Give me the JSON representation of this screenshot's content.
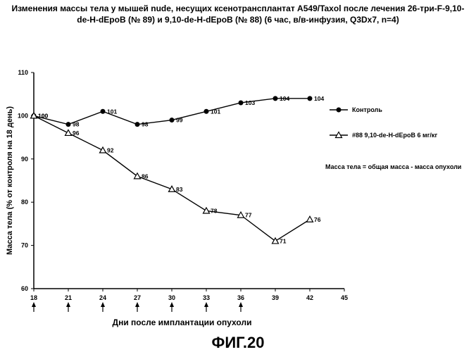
{
  "title_line1": "Изменения массы тела у мышей nude, несущих ксенотрансплантат A549/Taxol после лечения 26-три-F-9,10-",
  "title_line2": "de-H-dEpoB (№ 89) и 9,10-de-H-dEpoB (№ 88) (6 час, в/в-инфузия, Q3Dx7, n=4)",
  "figure_label": "ФИГ.20",
  "chart_data": {
    "type": "line",
    "xlabel": "Дни после имплантации опухоли",
    "ylabel": "Масса тела (% от контроля на 18 день)",
    "xlim": [
      18,
      45
    ],
    "ylim": [
      60,
      110
    ],
    "x_ticks": [
      18,
      21,
      24,
      27,
      30,
      33,
      36,
      39,
      42,
      45
    ],
    "y_ticks": [
      60,
      70,
      80,
      90,
      100,
      110
    ],
    "dosing_days": [
      18,
      21,
      24,
      27,
      30,
      33,
      36
    ],
    "grid": false,
    "legend_position": "right",
    "series": [
      {
        "name": "Контроль",
        "marker": "filled-circle",
        "color": "#000000",
        "x": [
          18,
          21,
          24,
          27,
          30,
          33,
          36,
          39,
          42
        ],
        "values": [
          100,
          98,
          101,
          98,
          99,
          101,
          103,
          104,
          104
        ],
        "labels": [
          "100",
          "98",
          "101",
          "98",
          "99",
          "101",
          "103",
          "104",
          "104"
        ]
      },
      {
        "name": "#88  9,10-de-H-dEpoB 6 мг/кг",
        "marker": "open-triangle",
        "color": "#000000",
        "x": [
          18,
          21,
          24,
          27,
          30,
          33,
          36,
          39,
          42
        ],
        "values": [
          100,
          96,
          92,
          86,
          83,
          78,
          77,
          71,
          76
        ],
        "labels": [
          "100",
          "96",
          "92",
          "86",
          "83",
          "78",
          "77",
          "71",
          "76"
        ]
      }
    ],
    "annotation": "Масса тела = общая масса - масса опухоли"
  }
}
